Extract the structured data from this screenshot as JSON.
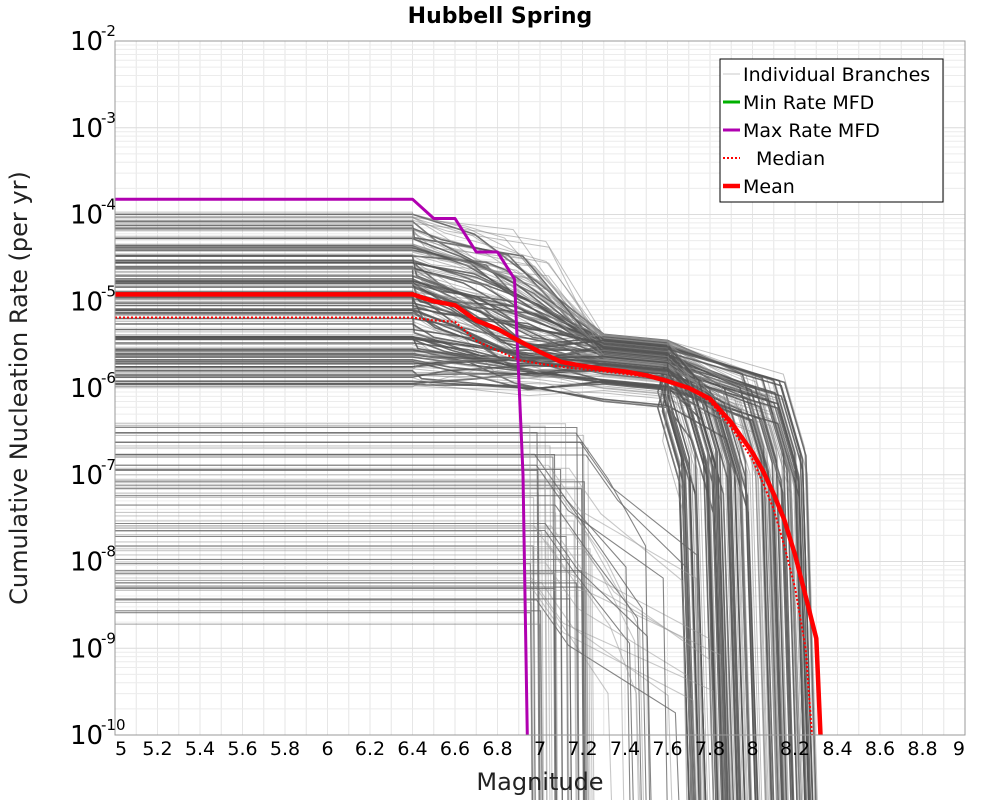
{
  "chart_data": {
    "type": "line",
    "title": "Hubbell Spring",
    "xlabel": "Magnitude",
    "ylabel": "Cumulative Nucleation Rate (per yr)",
    "xlim": [
      5,
      9
    ],
    "ylim_log10": [
      -10,
      -2
    ],
    "y_scale": "log",
    "grid": true,
    "legend_position": "top-right",
    "xticks": [
      "5",
      "5.2",
      "5.4",
      "5.6",
      "5.8",
      "6",
      "6.2",
      "6.4",
      "6.6",
      "6.8",
      "7",
      "7.2",
      "7.4",
      "7.6",
      "7.8",
      "8",
      "8.2",
      "8.4",
      "8.6",
      "8.8",
      "9"
    ],
    "yticks": [
      {
        "base": "10",
        "exp": "-2",
        "log": -2
      },
      {
        "base": "10",
        "exp": "-3",
        "log": -3
      },
      {
        "base": "10",
        "exp": "-4",
        "log": -4
      },
      {
        "base": "10",
        "exp": "-5",
        "log": -5
      },
      {
        "base": "10",
        "exp": "-6",
        "log": -6
      },
      {
        "base": "10",
        "exp": "-7",
        "log": -7
      },
      {
        "base": "10",
        "exp": "-8",
        "log": -8
      },
      {
        "base": "10",
        "exp": "-9",
        "log": -9
      },
      {
        "base": "10",
        "exp": "-10",
        "log": -10
      }
    ],
    "legend": [
      {
        "label": "Individual Branches",
        "color": "#c8c8c8",
        "style": "solid-thin"
      },
      {
        "label": "Min Rate MFD",
        "color": "#00b000",
        "style": "solid"
      },
      {
        "label": "Max Rate MFD",
        "color": "#b000b0",
        "style": "solid"
      },
      {
        "label": "Median",
        "color": "#ff0000",
        "style": "dotted"
      },
      {
        "label": "Mean",
        "color": "#ff0000",
        "style": "solid-thick"
      }
    ],
    "series": [
      {
        "name": "Max Rate MFD",
        "color": "#b000b0",
        "x": [
          5.0,
          6.4,
          6.5,
          6.6,
          6.7,
          6.8,
          6.88,
          6.92,
          6.94
        ],
        "y": [
          0.00015,
          0.00015,
          9e-05,
          9e-05,
          3.7e-05,
          3.7e-05,
          1.8e-05,
          1e-07,
          1e-10
        ]
      },
      {
        "name": "Mean",
        "color": "#ff0000",
        "x": [
          5.0,
          6.4,
          6.5,
          6.6,
          6.7,
          6.8,
          6.9,
          7.0,
          7.1,
          7.2,
          7.3,
          7.4,
          7.5,
          7.6,
          7.7,
          7.8,
          7.9,
          8.0,
          8.05,
          8.1,
          8.15,
          8.2,
          8.25,
          8.3,
          8.32
        ],
        "y": [
          1.2e-05,
          1.2e-05,
          1e-05,
          9e-06,
          6e-06,
          4.8e-06,
          3.5e-06,
          2.6e-06,
          2e-06,
          1.8e-06,
          1.65e-06,
          1.55e-06,
          1.4e-06,
          1.2e-06,
          1e-06,
          7.5e-07,
          4e-07,
          1.8e-07,
          1.1e-07,
          6e-08,
          3e-08,
          1.2e-08,
          4e-09,
          1.3e-09,
          1e-10
        ]
      },
      {
        "name": "Median",
        "color": "#ff0000",
        "x": [
          5.0,
          6.4,
          6.5,
          6.6,
          6.7,
          6.8,
          6.9,
          7.0,
          7.1,
          7.2,
          7.3,
          7.4,
          7.5,
          7.6,
          7.7,
          7.8,
          7.9,
          8.0,
          8.05,
          8.1,
          8.15,
          8.2,
          8.25,
          8.28
        ],
        "y": [
          6.5e-06,
          6.5e-06,
          6e-06,
          5.8e-06,
          3.5e-06,
          2.7e-06,
          2.1e-06,
          1.9e-06,
          1.75e-06,
          1.65e-06,
          1.55e-06,
          1.45e-06,
          1.35e-06,
          1.2e-06,
          1e-06,
          7e-07,
          3.5e-07,
          1.5e-07,
          8e-08,
          4e-08,
          1.5e-08,
          5e-09,
          1e-09,
          1e-10
        ]
      }
    ]
  }
}
